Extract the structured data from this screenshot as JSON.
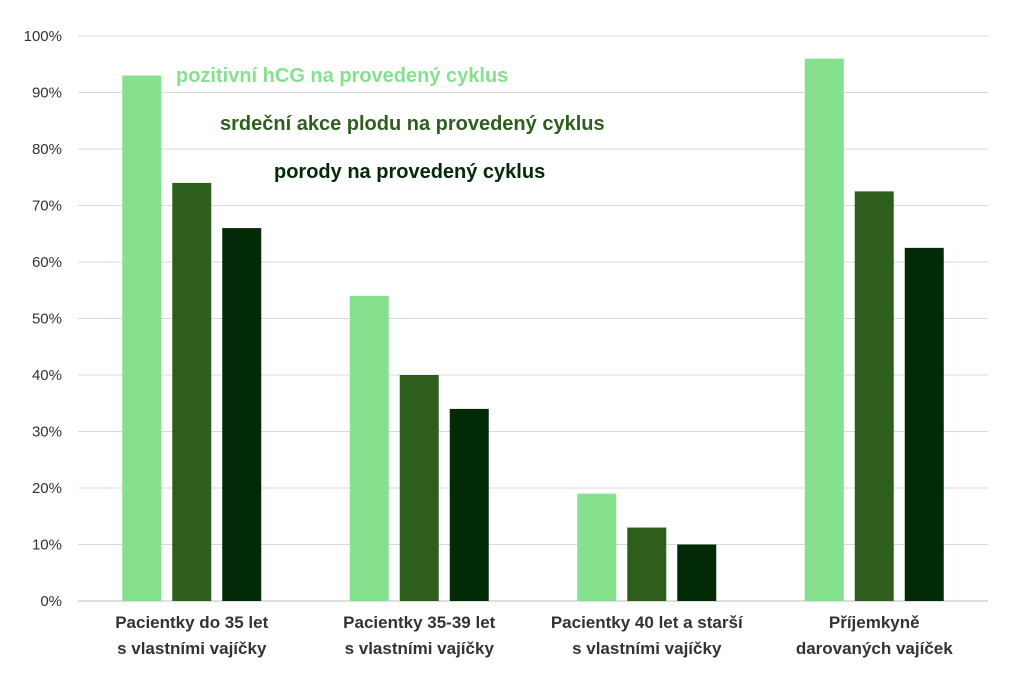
{
  "chart_data": {
    "type": "bar",
    "categories": [
      [
        "Pacientky do 35 let",
        "s vlastními vajíčky"
      ],
      [
        "Pacientky 35-39 let",
        "s vlastními vajíčky"
      ],
      [
        "Pacientky 40 let a starší",
        "s vlastními vajíčky"
      ],
      [
        "Příjemkyně",
        "darovaných vajíček"
      ]
    ],
    "series": [
      {
        "name": "pozitivní hCG na provedený cyklus",
        "color": "#86e18f",
        "values": [
          93,
          54,
          19,
          96
        ]
      },
      {
        "name": "srdeční akce plodu na provedený cyklus",
        "color": "#2e5e1e",
        "values": [
          74,
          40,
          13,
          72.5
        ]
      },
      {
        "name": "porody na provedený cyklus",
        "color": "#022a06",
        "values": [
          66,
          34,
          10,
          62.5
        ]
      }
    ],
    "yticks": [
      "0%",
      "10%",
      "20%",
      "30%",
      "40%",
      "50%",
      "60%",
      "70%",
      "80%",
      "90%",
      "100%"
    ],
    "ylim": [
      0,
      100
    ],
    "grid": true,
    "legend_position": "top-left inside plot",
    "title": "",
    "xlabel": "",
    "ylabel": ""
  }
}
